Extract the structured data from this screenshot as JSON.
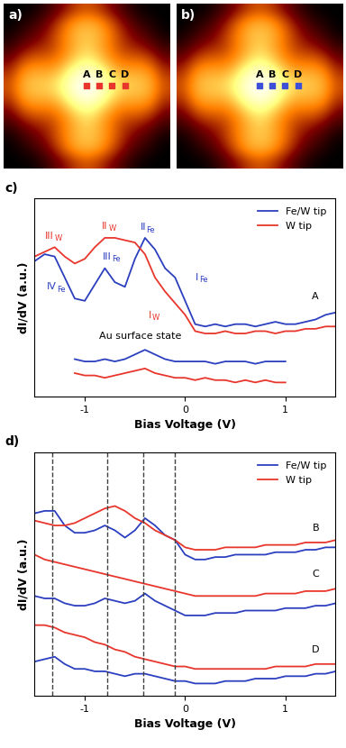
{
  "chart_data": [
    {
      "type": "heatmap",
      "label": "a)",
      "color": "#e8362d",
      "marker": "square",
      "cells": [
        [
          0.15,
          0.15,
          0.18,
          0.25,
          0.35,
          0.45,
          0.5,
          0.45,
          0.35,
          0.25,
          0.18,
          0.15,
          0.15
        ],
        [
          0.15,
          0.2,
          0.25,
          0.35,
          0.5,
          0.62,
          0.66,
          0.62,
          0.5,
          0.35,
          0.25,
          0.2,
          0.15
        ],
        [
          0.18,
          0.25,
          0.32,
          0.42,
          0.55,
          0.66,
          0.7,
          0.66,
          0.55,
          0.42,
          0.32,
          0.25,
          0.18
        ],
        [
          0.25,
          0.35,
          0.42,
          0.45,
          0.55,
          0.65,
          0.72,
          0.65,
          0.55,
          0.45,
          0.42,
          0.35,
          0.25
        ],
        [
          0.35,
          0.5,
          0.55,
          0.55,
          0.6,
          0.72,
          0.8,
          0.72,
          0.6,
          0.55,
          0.55,
          0.5,
          0.35
        ],
        [
          0.45,
          0.62,
          0.66,
          0.65,
          0.72,
          0.88,
          0.95,
          0.88,
          0.72,
          0.65,
          0.66,
          0.62,
          0.45
        ],
        [
          0.5,
          0.66,
          0.7,
          0.72,
          0.8,
          0.95,
          1.0,
          0.95,
          0.8,
          0.72,
          0.7,
          0.66,
          0.5
        ],
        [
          0.45,
          0.62,
          0.66,
          0.65,
          0.72,
          0.88,
          0.95,
          0.88,
          0.72,
          0.65,
          0.66,
          0.62,
          0.45
        ],
        [
          0.35,
          0.5,
          0.55,
          0.55,
          0.6,
          0.72,
          0.8,
          0.72,
          0.6,
          0.55,
          0.55,
          0.5,
          0.35
        ],
        [
          0.25,
          0.35,
          0.42,
          0.45,
          0.55,
          0.65,
          0.72,
          0.65,
          0.55,
          0.45,
          0.42,
          0.35,
          0.25
        ],
        [
          0.18,
          0.25,
          0.32,
          0.42,
          0.55,
          0.66,
          0.7,
          0.66,
          0.55,
          0.42,
          0.32,
          0.25,
          0.18
        ],
        [
          0.15,
          0.2,
          0.25,
          0.35,
          0.5,
          0.62,
          0.66,
          0.62,
          0.5,
          0.35,
          0.25,
          0.2,
          0.15
        ],
        [
          0.15,
          0.15,
          0.18,
          0.25,
          0.35,
          0.45,
          0.5,
          0.45,
          0.35,
          0.25,
          0.18,
          0.15,
          0.15
        ]
      ],
      "points": [
        {
          "label": "A",
          "x": 6,
          "y": 6
        },
        {
          "label": "B",
          "x": 7,
          "y": 6
        },
        {
          "label": "C",
          "x": 8,
          "y": 6
        },
        {
          "label": "D",
          "x": 9,
          "y": 6
        }
      ]
    },
    {
      "type": "heatmap",
      "label": "b)",
      "color": "#3d4fd6",
      "marker": "square",
      "cells": [
        [
          0.15,
          0.15,
          0.18,
          0.25,
          0.35,
          0.45,
          0.5,
          0.45,
          0.35,
          0.25,
          0.18,
          0.15,
          0.15
        ],
        [
          0.15,
          0.2,
          0.25,
          0.35,
          0.5,
          0.62,
          0.66,
          0.62,
          0.5,
          0.35,
          0.25,
          0.2,
          0.15
        ],
        [
          0.18,
          0.25,
          0.32,
          0.42,
          0.55,
          0.66,
          0.7,
          0.66,
          0.55,
          0.42,
          0.32,
          0.25,
          0.18
        ],
        [
          0.25,
          0.35,
          0.42,
          0.45,
          0.55,
          0.65,
          0.72,
          0.65,
          0.55,
          0.45,
          0.42,
          0.35,
          0.25
        ],
        [
          0.35,
          0.5,
          0.55,
          0.55,
          0.6,
          0.72,
          0.8,
          0.72,
          0.6,
          0.55,
          0.55,
          0.5,
          0.35
        ],
        [
          0.45,
          0.62,
          0.66,
          0.65,
          0.72,
          0.88,
          0.95,
          0.88,
          0.72,
          0.65,
          0.66,
          0.62,
          0.45
        ],
        [
          0.5,
          0.66,
          0.7,
          0.72,
          0.8,
          0.95,
          1.0,
          0.95,
          0.8,
          0.72,
          0.7,
          0.66,
          0.5
        ],
        [
          0.45,
          0.62,
          0.66,
          0.65,
          0.72,
          0.88,
          0.95,
          0.88,
          0.72,
          0.65,
          0.66,
          0.62,
          0.45
        ],
        [
          0.35,
          0.5,
          0.55,
          0.55,
          0.6,
          0.72,
          0.8,
          0.72,
          0.6,
          0.55,
          0.55,
          0.5,
          0.35
        ],
        [
          0.25,
          0.35,
          0.42,
          0.45,
          0.55,
          0.65,
          0.72,
          0.65,
          0.55,
          0.45,
          0.42,
          0.35,
          0.25
        ],
        [
          0.18,
          0.25,
          0.32,
          0.42,
          0.55,
          0.66,
          0.7,
          0.66,
          0.55,
          0.42,
          0.32,
          0.25,
          0.18
        ],
        [
          0.15,
          0.2,
          0.25,
          0.35,
          0.5,
          0.62,
          0.66,
          0.62,
          0.5,
          0.35,
          0.25,
          0.2,
          0.15
        ],
        [
          0.15,
          0.15,
          0.18,
          0.25,
          0.35,
          0.45,
          0.5,
          0.45,
          0.35,
          0.25,
          0.18,
          0.15,
          0.15
        ]
      ],
      "points": [
        {
          "label": "A",
          "x": 6,
          "y": 6
        },
        {
          "label": "B",
          "x": 7,
          "y": 6
        },
        {
          "label": "C",
          "x": 8,
          "y": 6
        },
        {
          "label": "D",
          "x": 9,
          "y": 6
        }
      ]
    },
    {
      "type": "line",
      "label": "c)",
      "x_label": "Bias Voltage (V)",
      "y_label": "dI/dV (a.u.)",
      "x": [
        -1.5,
        -1.4,
        -1.3,
        -1.2,
        -1.1,
        -1.0,
        -0.9,
        -0.8,
        -0.7,
        -0.6,
        -0.5,
        -0.4,
        -0.3,
        -0.2,
        -0.1,
        0,
        0.1,
        0.2,
        0.3,
        0.4,
        0.5,
        0.6,
        0.7,
        0.8,
        0.9,
        1.0,
        1.1,
        1.2,
        1.3,
        1.4,
        1.5
      ],
      "xlim": [
        -1.5,
        1.5
      ],
      "xticks": [
        -1,
        0,
        1
      ],
      "ylim": [
        1.5,
        10
      ],
      "tick_labels": "x",
      "legend": "upper right",
      "series": [
        {
          "name": "Fe/W tip",
          "color": "#2b3fbf",
          "values": [
            7.3,
            7.6,
            7.5,
            6.6,
            5.7,
            5.6,
            6.3,
            7.0,
            6.4,
            6.2,
            7.4,
            8.3,
            7.8,
            7.0,
            6.6,
            5.6,
            4.6,
            4.5,
            4.6,
            4.5,
            4.6,
            4.6,
            4.5,
            4.6,
            4.7,
            4.6,
            4.6,
            4.7,
            4.8,
            5.0,
            5.1
          ]
        },
        {
          "name": "W tip",
          "color": "#e8362d",
          "values": [
            7.5,
            7.7,
            7.9,
            7.5,
            7.2,
            7.4,
            7.9,
            8.3,
            8.3,
            8.2,
            8.1,
            7.6,
            6.6,
            6.0,
            5.5,
            5.0,
            4.3,
            4.2,
            4.2,
            4.3,
            4.2,
            4.2,
            4.3,
            4.3,
            4.2,
            4.3,
            4.3,
            4.4,
            4.4,
            4.5,
            4.5
          ]
        },
        {
          "color": "#2b3fbf",
          "values": [
            null,
            null,
            null,
            null,
            3.1,
            3.0,
            3.0,
            3.1,
            3.0,
            3.1,
            3.3,
            3.5,
            3.3,
            3.1,
            3.0,
            3.0,
            3.0,
            3.0,
            2.9,
            3.0,
            3.0,
            3.0,
            2.9,
            3.0,
            3.0,
            3.0,
            null,
            null,
            null,
            null,
            null
          ]
        },
        {
          "color": "#e8362d",
          "values": [
            null,
            null,
            null,
            null,
            2.5,
            2.4,
            2.4,
            2.3,
            2.4,
            2.5,
            2.6,
            2.7,
            2.5,
            2.4,
            2.3,
            2.3,
            2.2,
            2.3,
            2.2,
            2.2,
            2.1,
            2.2,
            2.1,
            2.2,
            2.1,
            2.1,
            null,
            null,
            null,
            null,
            null
          ]
        }
      ],
      "annotations": [
        {
          "text": "III",
          "sub": "W",
          "x": -1.35,
          "y": 8.2,
          "color": "#e8362d"
        },
        {
          "text": "II",
          "sub": "W",
          "x": -0.8,
          "y": 8.6,
          "color": "#e8362d"
        },
        {
          "text": "I",
          "sub": "W",
          "x": -0.35,
          "y": 4.8,
          "color": "#e8362d"
        },
        {
          "text": "IV",
          "sub": "Fe",
          "x": -1.33,
          "y": 6.0,
          "color": "#2b3fbf"
        },
        {
          "text": "III",
          "sub": "Fe",
          "x": -0.78,
          "y": 7.3,
          "color": "#2b3fbf"
        },
        {
          "text": "II",
          "sub": "Fe",
          "x": -0.42,
          "y": 8.55,
          "color": "#2b3fbf"
        },
        {
          "text": "I",
          "sub": "Fe",
          "x": 0.12,
          "y": 6.4,
          "color": "#2b3fbf"
        },
        {
          "text": "Au surface state",
          "x": -0.45,
          "y": 3.9
        },
        {
          "text": "A",
          "x": 1.3,
          "y": 5.6
        }
      ]
    },
    {
      "type": "line",
      "label": "d)",
      "x_label": "Bias Voltage (V)",
      "y_label": "dI/dV (a.u.)",
      "x": [
        -1.5,
        -1.4,
        -1.3,
        -1.2,
        -1.1,
        -1.0,
        -0.9,
        -0.8,
        -0.7,
        -0.6,
        -0.5,
        -0.4,
        -0.3,
        -0.2,
        -0.1,
        0,
        0.1,
        0.2,
        0.3,
        0.4,
        0.5,
        0.6,
        0.7,
        0.8,
        0.9,
        1.0,
        1.1,
        1.2,
        1.3,
        1.4,
        1.5
      ],
      "xlim": [
        -1.5,
        1.5
      ],
      "xticks": [
        -1,
        0,
        1
      ],
      "ylim": [
        1.5,
        11.5
      ],
      "tick_labels": "x",
      "legend": "upper right",
      "vlines": [
        -1.32,
        -0.78,
        -0.42,
        -0.1
      ],
      "series": [
        {
          "name": "Fe/W tip",
          "color": "#2b3fbf",
          "values": [
            9.0,
            9.1,
            9.1,
            8.5,
            8.2,
            8.2,
            8.3,
            8.5,
            8.3,
            8.0,
            8.3,
            8.8,
            8.5,
            8.1,
            7.9,
            7.3,
            7.1,
            7.1,
            7.2,
            7.2,
            7.3,
            7.3,
            7.3,
            7.3,
            7.4,
            7.4,
            7.4,
            7.5,
            7.5,
            7.6,
            7.6
          ]
        },
        {
          "name": "W tip",
          "color": "#e8362d",
          "values": [
            8.7,
            8.6,
            8.5,
            8.5,
            8.6,
            8.8,
            9.0,
            9.2,
            9.3,
            9.1,
            8.8,
            8.6,
            8.3,
            8.1,
            7.9,
            7.6,
            7.5,
            7.5,
            7.5,
            7.6,
            7.6,
            7.6,
            7.6,
            7.7,
            7.7,
            7.7,
            7.7,
            7.8,
            7.8,
            7.8,
            7.9
          ]
        },
        {
          "color": "#2b3fbf",
          "values": [
            5.6,
            5.5,
            5.5,
            5.3,
            5.2,
            5.2,
            5.3,
            5.5,
            5.4,
            5.3,
            5.4,
            5.7,
            5.4,
            5.2,
            5.0,
            4.8,
            4.8,
            4.8,
            4.9,
            4.9,
            4.9,
            5.0,
            5.0,
            5.0,
            5.0,
            5.1,
            5.1,
            5.1,
            5.2,
            5.2,
            5.3
          ]
        },
        {
          "color": "#e8362d",
          "values": [
            7.3,
            7.1,
            7.0,
            6.9,
            6.8,
            6.7,
            6.6,
            6.5,
            6.4,
            6.3,
            6.2,
            6.1,
            6.0,
            5.9,
            5.8,
            5.7,
            5.6,
            5.6,
            5.6,
            5.6,
            5.6,
            5.6,
            5.6,
            5.7,
            5.7,
            5.7,
            5.7,
            5.8,
            5.8,
            5.8,
            5.9
          ]
        },
        {
          "color": "#2b3fbf",
          "values": [
            2.9,
            3.0,
            3.1,
            2.8,
            2.6,
            2.6,
            2.5,
            2.5,
            2.4,
            2.3,
            2.4,
            2.4,
            2.3,
            2.2,
            2.1,
            2.1,
            2.0,
            2.0,
            2.0,
            2.1,
            2.1,
            2.1,
            2.2,
            2.2,
            2.2,
            2.3,
            2.3,
            2.3,
            2.4,
            2.4,
            2.5
          ]
        },
        {
          "color": "#e8362d",
          "values": [
            4.4,
            4.4,
            4.3,
            4.1,
            4.0,
            3.9,
            3.7,
            3.6,
            3.4,
            3.3,
            3.1,
            3.0,
            2.9,
            2.8,
            2.7,
            2.7,
            2.6,
            2.6,
            2.6,
            2.6,
            2.6,
            2.6,
            2.6,
            2.6,
            2.7,
            2.7,
            2.7,
            2.7,
            2.8,
            2.8,
            2.8
          ]
        }
      ],
      "annotations": [
        {
          "text": "B",
          "x": 1.3,
          "y": 8.2
        },
        {
          "text": "C",
          "x": 1.3,
          "y": 6.3
        },
        {
          "text": "D",
          "x": 1.3,
          "y": 3.2
        }
      ]
    }
  ]
}
